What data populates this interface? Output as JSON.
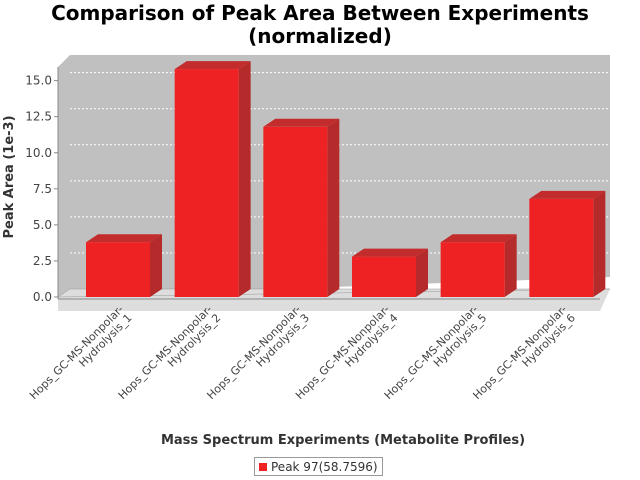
{
  "chart_data": {
    "type": "bar",
    "title_lines": [
      "Comparison of Peak Area Between Experiments",
      "(normalized)"
    ],
    "xlabel": "Mass Spectrum Experiments (Metabolite Profiles)",
    "ylabel": "Peak Area (1e-3)",
    "categories": [
      [
        "Hops_GC-MS-Nonpolar-",
        "Hydrolysis_1"
      ],
      [
        "Hops_GC-MS-Nonpolar-",
        "Hydrolysis_2"
      ],
      [
        "Hops_GC-MS-Nonpolar-",
        "Hydrolysis_3"
      ],
      [
        "Hops_GC-MS-Nonpolar-",
        "Hydrolysis_4"
      ],
      [
        "Hops_GC-MS-Nonpolar-",
        "Hydrolysis_5"
      ],
      [
        "Hops_GC-MS-Nonpolar-",
        "Hydrolysis_6"
      ]
    ],
    "series": [
      {
        "name": "Peak 97(58.7596)",
        "values": [
          3.8,
          15.8,
          11.8,
          2.8,
          3.8,
          6.8
        ]
      }
    ],
    "ylim": [
      0,
      16.5
    ],
    "yticks": [
      "0.0",
      "2.5",
      "5.0",
      "7.5",
      "10.0",
      "12.5",
      "15.0"
    ],
    "grid": true,
    "legend_position": "bottom",
    "colors": {
      "bar": "#ee2222",
      "plot_bg": "#c0c0c0"
    }
  }
}
